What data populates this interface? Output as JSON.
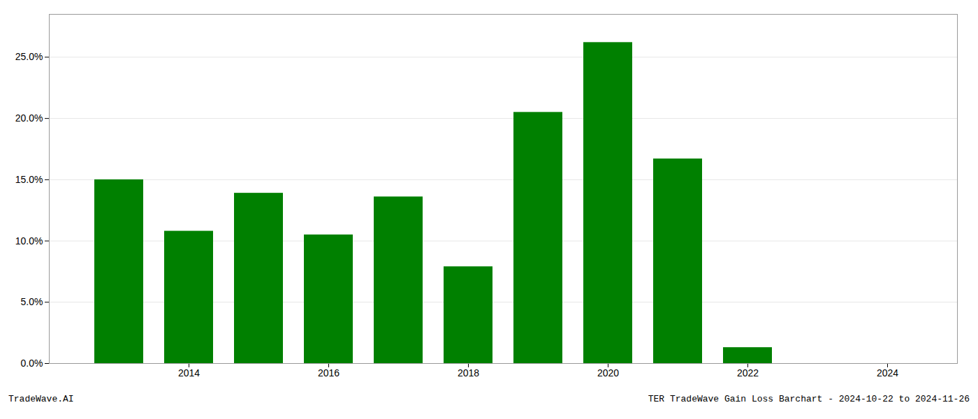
{
  "chart_data": {
    "type": "bar",
    "x": [
      2013,
      2014,
      2015,
      2016,
      2017,
      2018,
      2019,
      2020,
      2021,
      2022,
      2023,
      2024
    ],
    "values": [
      0.15,
      0.108,
      0.139,
      0.105,
      0.136,
      0.079,
      0.205,
      0.262,
      0.167,
      0.013,
      0.0,
      0.0
    ],
    "color": "#008000",
    "xlim": [
      2012,
      2025
    ],
    "xticks": [
      2014,
      2016,
      2018,
      2020,
      2022,
      2024
    ],
    "ylim": [
      0,
      0.285
    ],
    "yticks": [
      {
        "value": 0.0,
        "label": "0.0%"
      },
      {
        "value": 0.05,
        "label": "5.0%"
      },
      {
        "value": 0.1,
        "label": "10.0%"
      },
      {
        "value": 0.15,
        "label": "15.0%"
      },
      {
        "value": 0.2,
        "label": "20.0%"
      },
      {
        "value": 0.25,
        "label": "25.0%"
      }
    ],
    "grid": true,
    "annotations": [
      "TradeWave.AI",
      "TER TradeWave Gain Loss Barchart - 2024-10-22 to 2024-11-26"
    ]
  }
}
